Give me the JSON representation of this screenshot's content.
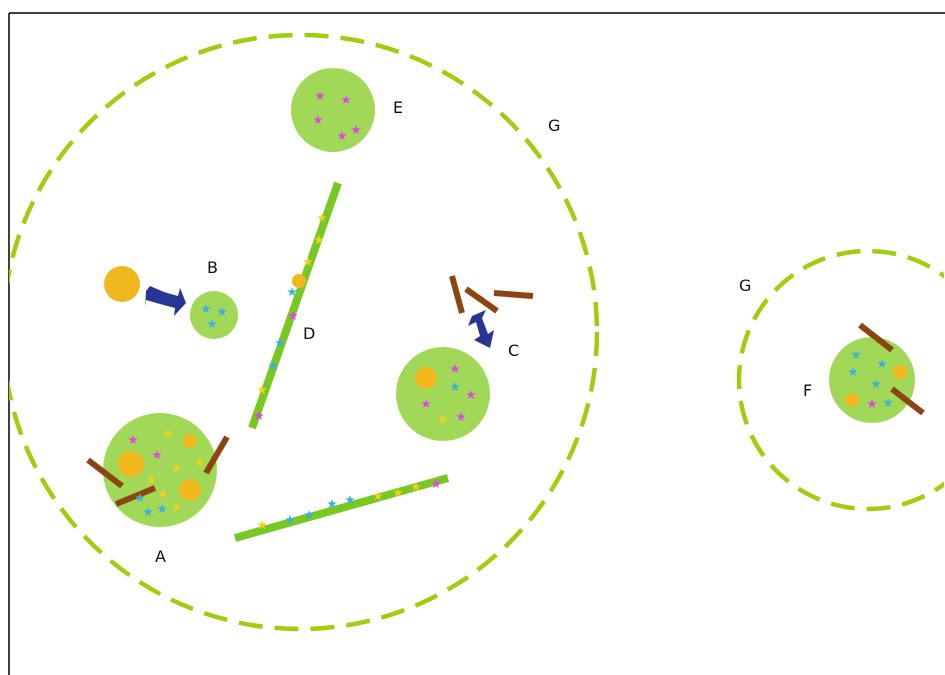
{
  "labels": {
    "a": "A",
    "b": "B",
    "c": "C",
    "d": "D",
    "e": "E",
    "f": "F",
    "g_large": "G",
    "g_small": "G"
  },
  "colors": {
    "dashed_boundary": "#a2cc10",
    "cluster_fill": "#a2d857",
    "filament": "#78c823",
    "brown_bar": "#8b4513",
    "gold_circle": "#f0b81e",
    "arrow": "#283593",
    "star_magenta": "#d94bd9",
    "star_blue": "#3ab0e0",
    "star_yellow": "#f2d21a",
    "frame": "#000000"
  }
}
